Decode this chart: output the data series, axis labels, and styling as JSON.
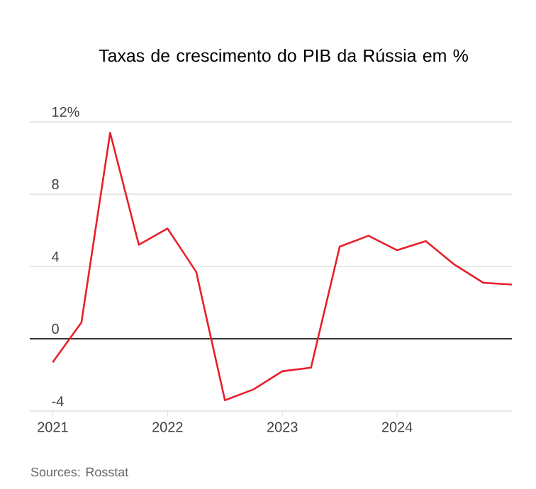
{
  "chart_data": {
    "type": "line",
    "title": "Taxas de crescimento do PIB da Rússia em %",
    "x": [
      2021,
      2021.25,
      2021.5,
      2021.75,
      2022,
      2022.25,
      2022.5,
      2022.75,
      2023,
      2023.25,
      2023.5,
      2023.75,
      2024,
      2024.25,
      2024.5,
      2024.75,
      2025
    ],
    "series": [
      {
        "color": "#e8202a",
        "values": [
          -1.3,
          0.9,
          11.4,
          5.2,
          6.1,
          3.7,
          -3.4,
          -2.8,
          -1.8,
          -1.6,
          5.1,
          5.7,
          4.9,
          5.4,
          4.1,
          3.1,
          3.0
        ]
      }
    ],
    "xlim": [
      2020.8,
      2025
    ],
    "xticks": [
      2021,
      2022,
      2023,
      2024
    ],
    "ylim": [
      -4,
      12
    ],
    "yticks": [
      -4,
      0,
      4,
      8,
      {
        "value": 12,
        "label": "12%"
      }
    ],
    "grid": "y",
    "marker": "none",
    "line_style": "solid",
    "ref_lines": [
      {
        "axis": "y",
        "value": 0,
        "color": "#333333"
      }
    ],
    "annotations": [
      "Sources: Rosstat"
    ]
  }
}
